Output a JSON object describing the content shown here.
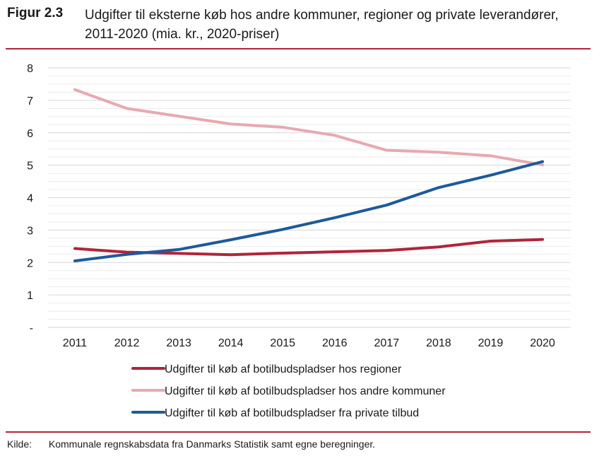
{
  "figure": {
    "label": "Figur 2.3",
    "title": "Udgifter til eksterne køb hos andre kommuner, regioner og private leverandører, 2011-2020 (mia. kr., 2020-priser)"
  },
  "source": {
    "label": "Kilde:",
    "text": "Kommunale regnskabsdata fra Danmarks Statistik samt egne beregninger."
  },
  "chart_data": {
    "type": "line",
    "title": "",
    "xlabel": "",
    "ylabel": "",
    "x": [
      "2011",
      "2012",
      "2013",
      "2014",
      "2015",
      "2016",
      "2017",
      "2018",
      "2019",
      "2020"
    ],
    "ylim": [
      0,
      8
    ],
    "y_ticks": [
      {
        "value": 8,
        "label": "8"
      },
      {
        "value": 7,
        "label": "7"
      },
      {
        "value": 6,
        "label": "6"
      },
      {
        "value": 5,
        "label": "5"
      },
      {
        "value": 4,
        "label": "4"
      },
      {
        "value": 3,
        "label": "3"
      },
      {
        "value": 2,
        "label": "2"
      },
      {
        "value": 1,
        "label": "1"
      },
      {
        "value": 0,
        "label": "-"
      }
    ],
    "grid": true,
    "legend_position": "bottom",
    "series": [
      {
        "name": "Udgifter til køb af botilbudspladser hos regioner",
        "color": "#b2243a",
        "values": [
          2.43,
          2.32,
          2.28,
          2.24,
          2.29,
          2.33,
          2.37,
          2.48,
          2.66,
          2.71
        ]
      },
      {
        "name": "Udgifter til køb af botilbudspladser hos andre kommuner",
        "color": "#e8a9b1",
        "values": [
          7.33,
          6.75,
          6.51,
          6.27,
          6.17,
          5.92,
          5.46,
          5.4,
          5.29,
          5.01
        ]
      },
      {
        "name": "Udgifter til køb af botilbudspladser fra private tilbud",
        "color": "#1d5a9a",
        "values": [
          2.05,
          2.25,
          2.4,
          2.7,
          3.02,
          3.38,
          3.77,
          4.31,
          4.69,
          5.11
        ]
      }
    ]
  }
}
